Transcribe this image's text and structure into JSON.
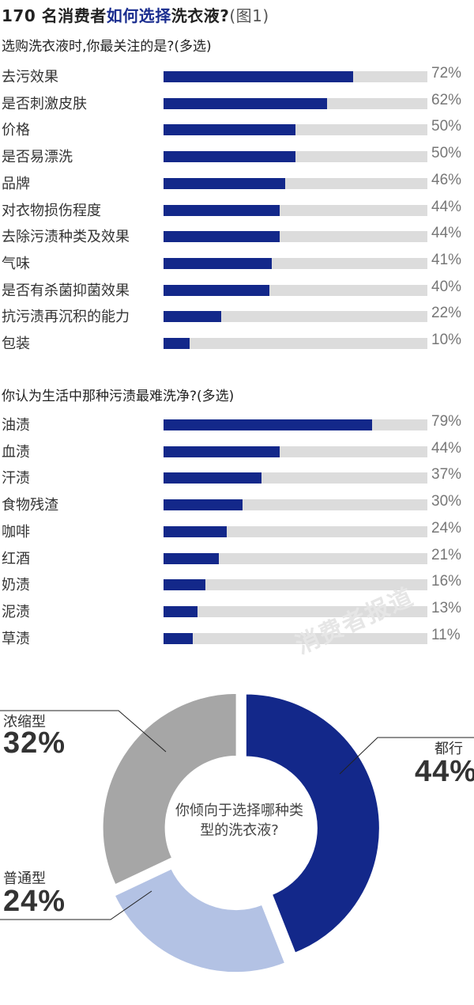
{
  "title": {
    "main_a": "170 名消费者",
    "main_hl": "如何选择",
    "main_b": "洗衣液?",
    "fig": "(图1)"
  },
  "colors": {
    "bar": "#13288a",
    "track": "#dcdcdc",
    "donut_dark": "#13288a",
    "donut_light": "#b3c2e4",
    "donut_grey": "#a6a6a6"
  },
  "watermark": "消费者报道",
  "chart_data": [
    {
      "type": "bar",
      "title": "选购洗衣液时,你最关注的是?(多选)",
      "categories": [
        "去污效果",
        "是否刺激皮肤",
        "价格",
        "是否易漂洗",
        "品牌",
        "对衣物损伤程度",
        "去除污渍种类及效果",
        "气味",
        "是否有杀菌抑菌效果",
        "抗污渍再沉积的能力",
        "包装"
      ],
      "values": [
        72,
        62,
        50,
        50,
        46,
        44,
        44,
        41,
        40,
        22,
        10
      ],
      "value_labels": [
        "72%",
        "62%",
        "50%",
        "50%",
        "46%",
        "44%",
        "44%",
        "41%",
        "40%",
        "22%",
        "10%"
      ],
      "ylim": [
        0,
        100
      ]
    },
    {
      "type": "bar",
      "title": "你认为生活中那种污渍最难洗净?(多选)",
      "categories": [
        "油渍",
        "血渍",
        "汗渍",
        "食物残渣",
        "咖啡",
        "红酒",
        "奶渍",
        "泥渍",
        "草渍"
      ],
      "values": [
        79,
        44,
        37,
        30,
        24,
        21,
        16,
        13,
        11
      ],
      "value_labels": [
        "79%",
        "44%",
        "37%",
        "30%",
        "24%",
        "21%",
        "16%",
        "13%",
        "11%"
      ],
      "ylim": [
        0,
        100
      ]
    },
    {
      "type": "pie",
      "title": "你倾向于选择哪种类型的洗衣液?",
      "categories": [
        "都行",
        "普通型",
        "浓缩型"
      ],
      "values": [
        44,
        24,
        32
      ],
      "value_labels": [
        "44%",
        "24%",
        "32%"
      ],
      "colors": [
        "#13288a",
        "#b3c2e4",
        "#a6a6a6"
      ]
    }
  ]
}
